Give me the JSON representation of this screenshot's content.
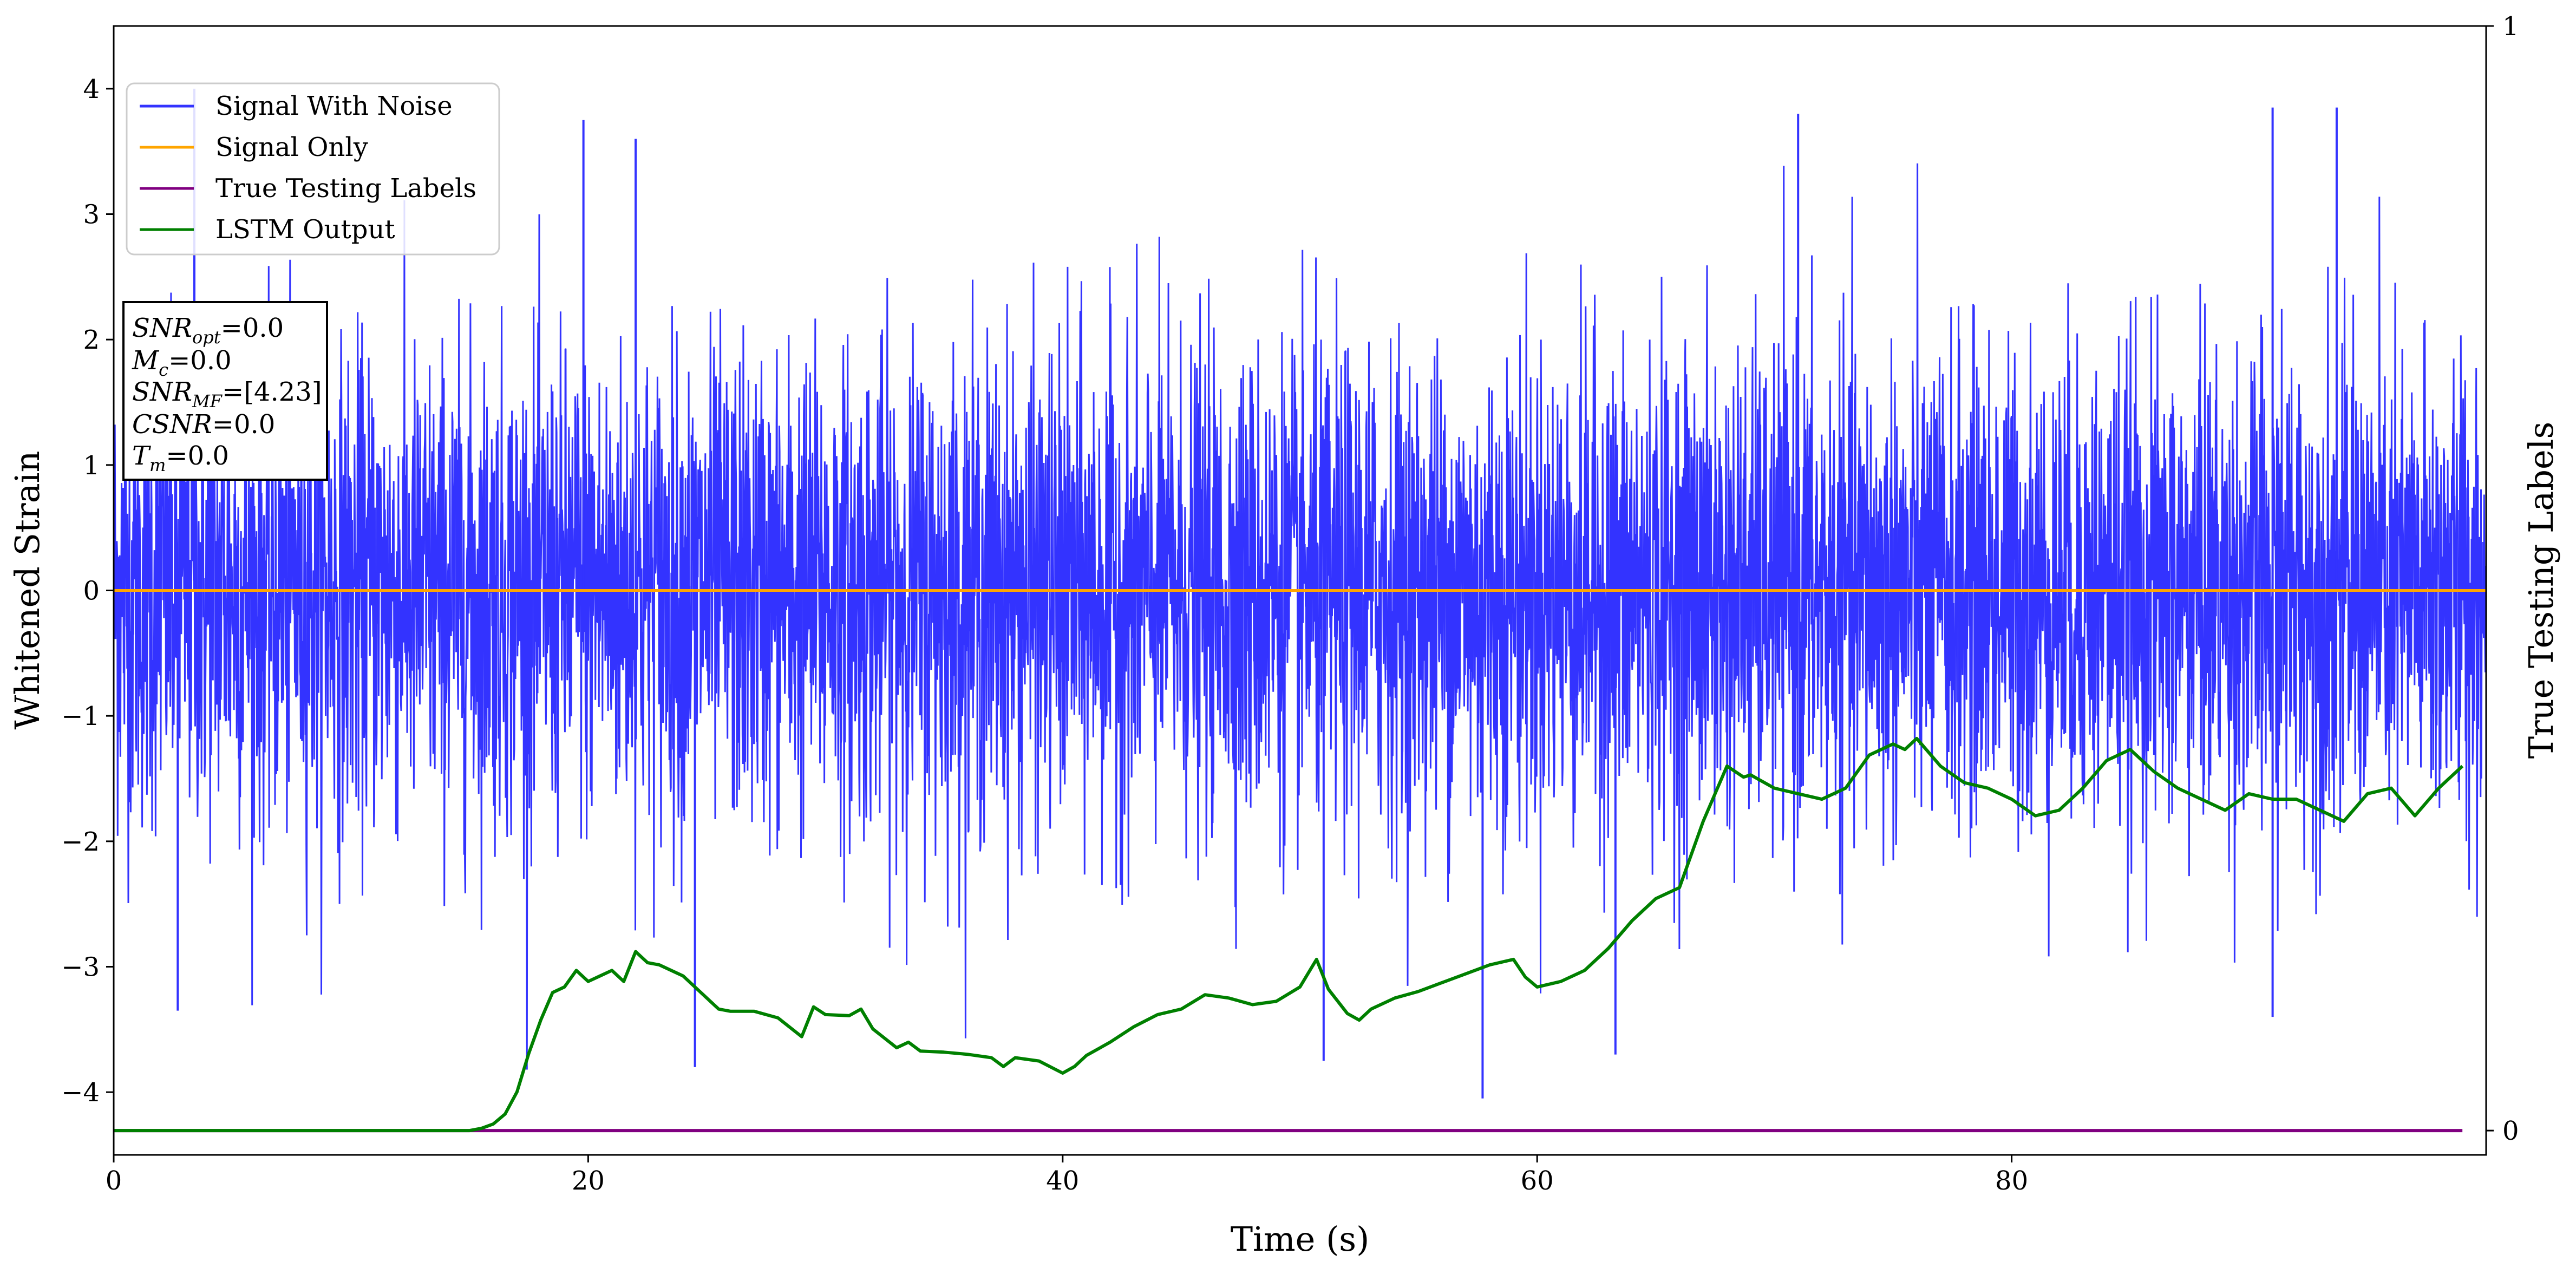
{
  "chart_data": {
    "type": "line",
    "xlabel": "Time (s)",
    "ylabel": "Whitened Strain",
    "y2label": "True Testing Labels",
    "xlim": [
      0,
      100
    ],
    "ylim": [
      -4.5,
      4.5
    ],
    "y2lim": [
      -0.022,
      1.0
    ],
    "x_ticks": [
      0,
      20,
      40,
      60,
      80
    ],
    "y_ticks": [
      -4,
      -3,
      -2,
      -1,
      0,
      1,
      2,
      3,
      4
    ],
    "y2_ticks": [
      0,
      1
    ],
    "grid": false,
    "legend_position": "top-left",
    "colors": {
      "signal_with_noise": "#3333ff",
      "signal_only": "#ffa500",
      "true_labels": "#800080",
      "lstm_output": "#008000"
    },
    "series": [
      {
        "name": "Signal With Noise",
        "axis": "left",
        "description_values": "dense noise, 10000 samples, mostly within -2 to 2 with peaks to about 3.9 and dips to about -4.05",
        "notable_peaks": [
          [
            3.4,
            4.0
          ],
          [
            19.8,
            3.75
          ],
          [
            22.0,
            3.6
          ],
          [
            71.0,
            3.8
          ],
          [
            91.0,
            3.85
          ],
          [
            93.7,
            3.85
          ]
        ],
        "notable_dips": [
          [
            2.7,
            -3.35
          ],
          [
            24.5,
            -3.8
          ],
          [
            51.0,
            -3.75
          ],
          [
            57.7,
            -4.05
          ],
          [
            63.3,
            -3.7
          ],
          [
            91.0,
            -3.4
          ]
        ]
      },
      {
        "name": "Signal Only",
        "axis": "left",
        "x": [
          0,
          100
        ],
        "y": [
          0,
          0
        ]
      },
      {
        "name": "True Testing Labels",
        "axis": "right",
        "x": [
          0,
          99
        ],
        "y": [
          0,
          0
        ]
      },
      {
        "name": "LSTM Output",
        "axis": "right",
        "x": [
          0,
          15,
          15.5,
          16,
          16.5,
          17,
          17.5,
          18,
          18.5,
          19,
          19.5,
          20,
          20.5,
          21,
          21.5,
          22,
          22.5,
          23,
          24,
          25,
          25.5,
          26,
          27,
          28,
          29,
          29.5,
          30,
          31,
          31.5,
          32,
          33,
          33.5,
          34,
          35,
          36,
          37,
          37.5,
          38,
          39,
          40,
          40.5,
          41,
          42,
          43,
          44,
          45,
          46,
          47,
          48,
          49,
          50,
          50.7,
          51.2,
          52,
          52.5,
          53,
          54,
          55,
          56,
          57,
          58,
          59,
          59.5,
          60,
          61,
          62,
          63,
          64,
          65,
          66,
          67,
          68,
          68.7,
          69,
          70,
          71,
          72,
          73,
          74,
          75,
          75.5,
          76,
          77,
          78,
          79,
          80,
          81,
          82,
          83,
          84,
          85,
          86,
          87,
          88,
          89,
          90,
          91,
          92,
          93,
          94,
          95,
          96,
          97,
          98,
          99
        ],
        "y": [
          0.0,
          0.0,
          0.002,
          0.006,
          0.015,
          0.035,
          0.07,
          0.1,
          0.125,
          0.13,
          0.145,
          0.135,
          0.14,
          0.145,
          0.135,
          0.162,
          0.152,
          0.15,
          0.14,
          0.12,
          0.11,
          0.108,
          0.108,
          0.102,
          0.085,
          0.112,
          0.105,
          0.104,
          0.11,
          0.092,
          0.075,
          0.08,
          0.072,
          0.071,
          0.069,
          0.066,
          0.058,
          0.066,
          0.063,
          0.052,
          0.058,
          0.068,
          0.08,
          0.094,
          0.105,
          0.11,
          0.123,
          0.12,
          0.114,
          0.117,
          0.13,
          0.155,
          0.128,
          0.106,
          0.1,
          0.11,
          0.12,
          0.126,
          0.134,
          0.142,
          0.15,
          0.155,
          0.139,
          0.13,
          0.135,
          0.145,
          0.165,
          0.19,
          0.21,
          0.22,
          0.28,
          0.33,
          0.32,
          0.322,
          0.31,
          0.305,
          0.3,
          0.31,
          0.34,
          0.35,
          0.345,
          0.355,
          0.33,
          0.315,
          0.31,
          0.3,
          0.285,
          0.29,
          0.31,
          0.335,
          0.345,
          0.325,
          0.31,
          0.3,
          0.29,
          0.305,
          0.3,
          0.3,
          0.29,
          0.28,
          0.305,
          0.31,
          0.285,
          0.31,
          0.33
        ]
      }
    ]
  },
  "legend": {
    "items": [
      {
        "label": "Signal With Noise",
        "color": "#3333ff"
      },
      {
        "label": "Signal Only",
        "color": "#ffa500"
      },
      {
        "label": "True Testing Labels",
        "color": "#800080"
      },
      {
        "label": "LSTM Output",
        "color": "#008000"
      }
    ]
  },
  "info_box": {
    "line1": {
      "base": "SNR",
      "sub": "opt",
      "value": "=0.0"
    },
    "line2": {
      "base": "M",
      "sub": "c",
      "value": "=0.0"
    },
    "line3": {
      "base": "SNR",
      "sub": "MF",
      "value": "=[4.23]"
    },
    "line4": {
      "base": "CSNR",
      "sub": "",
      "value": "=0.0"
    },
    "line5": {
      "base": "T",
      "sub": "m",
      "value": "=0.0"
    }
  }
}
